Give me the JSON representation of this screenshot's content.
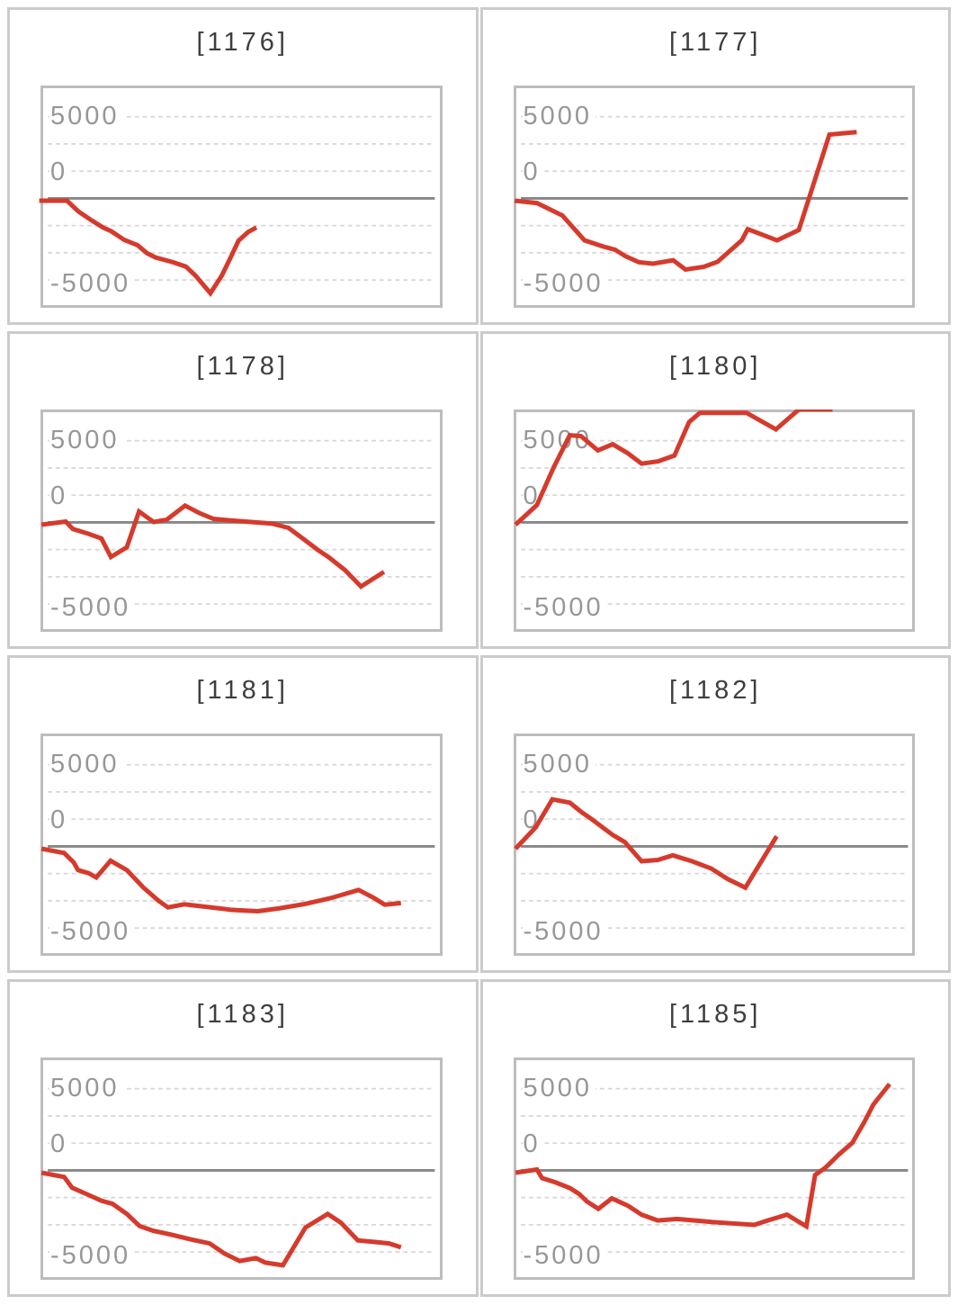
{
  "page": {
    "background": "#ffffff",
    "description": "Grid of 8 slump line charts"
  },
  "axis": {
    "ticks": [
      "5000",
      "0",
      "-5000"
    ],
    "tick_gridline_index": [
      0,
      2,
      6
    ],
    "gridline_count": 7,
    "zero_line_gridline_index": 3
  },
  "colors": {
    "series_red": "#d53a2c",
    "gridline": "#d9d9d9",
    "zero_line": "#868686",
    "plot_border": "#bdbdbd",
    "panel_border": "#cbcbcb",
    "tick_label": "#979797",
    "title": "#3e3e3e"
  },
  "chart_data": [
    {
      "type": "line",
      "title": "[1176]",
      "ylabel": "",
      "xlabel": "",
      "ylim": [
        -6700,
        6700
      ],
      "yticks": [
        5000,
        0,
        -5000
      ],
      "legend": "none",
      "grid": "dashed-horizontal",
      "x_unit": "fraction_of_plot_width",
      "x": [
        -0.01,
        0.06,
        0.089,
        0.122,
        0.151,
        0.171,
        0.204,
        0.238,
        0.262,
        0.284,
        0.327,
        0.36,
        0.384,
        0.422,
        0.451,
        0.473,
        0.493,
        0.518,
        0.538
      ],
      "y": [
        0,
        0,
        -640,
        -1170,
        -1600,
        -1810,
        -2340,
        -2660,
        -3140,
        -3400,
        -3670,
        -3940,
        -4470,
        -5530,
        -4470,
        -3400,
        -2390,
        -1860,
        -1600
      ]
    },
    {
      "type": "line",
      "title": "[1177]",
      "ylabel": "",
      "xlabel": "",
      "ylim": [
        -6700,
        6700
      ],
      "yticks": [
        5000,
        0,
        -5000
      ],
      "legend": "none",
      "grid": "dashed-horizontal",
      "x_unit": "fraction_of_plot_width",
      "x": [
        -0.004,
        0.052,
        0.116,
        0.172,
        0.221,
        0.249,
        0.276,
        0.309,
        0.345,
        0.396,
        0.427,
        0.473,
        0.508,
        0.569,
        0.584,
        0.658,
        0.713,
        0.79,
        0.859
      ],
      "y": [
        0,
        -140,
        -880,
        -2370,
        -2750,
        -2930,
        -3330,
        -3680,
        -3770,
        -3560,
        -4120,
        -3950,
        -3650,
        -2370,
        -1700,
        -2370,
        -1750,
        3950,
        4100
      ]
    },
    {
      "type": "line",
      "title": "[1178]",
      "ylabel": "",
      "xlabel": "",
      "ylim": [
        -6700,
        6700
      ],
      "yticks": [
        5000,
        0,
        -5000
      ],
      "legend": "none",
      "grid": "dashed-horizontal",
      "x_unit": "fraction_of_plot_width",
      "x": [
        -0.004,
        0.057,
        0.075,
        0.113,
        0.147,
        0.171,
        0.211,
        0.242,
        0.279,
        0.312,
        0.358,
        0.396,
        0.43,
        0.473,
        0.525,
        0.577,
        0.619,
        0.653,
        0.692,
        0.721,
        0.762,
        0.802,
        0.86
      ],
      "y": [
        0,
        190,
        -260,
        -530,
        -820,
        -1930,
        -1350,
        790,
        160,
        300,
        1140,
        680,
        350,
        260,
        160,
        70,
        -190,
        -790,
        -1490,
        -1950,
        -2720,
        -3700,
        -2820
      ]
    },
    {
      "type": "line",
      "title": "[1180]",
      "ylabel": "",
      "xlabel": "",
      "ylim": [
        -6700,
        6700
      ],
      "yticks": [
        5000,
        0,
        -5000
      ],
      "legend": "none",
      "grid": "dashed-horizontal",
      "x_unit": "fraction_of_plot_width",
      "note": "values above ~6600 are clipped at plot top",
      "x": [
        -0.002,
        0.052,
        0.094,
        0.135,
        0.163,
        0.206,
        0.243,
        0.281,
        0.316,
        0.358,
        0.399,
        0.436,
        0.463,
        0.581,
        0.655,
        0.713,
        0.798
      ],
      "y": [
        0,
        1180,
        3420,
        5350,
        5300,
        4440,
        4810,
        4280,
        3650,
        3790,
        4140,
        6140,
        6690,
        6690,
        5700,
        6890,
        6890
      ]
    },
    {
      "type": "line",
      "title": "[1181]",
      "ylabel": "",
      "xlabel": "",
      "ylim": [
        -6700,
        6700
      ],
      "yticks": [
        5000,
        0,
        -5000
      ],
      "legend": "none",
      "grid": "dashed-horizontal",
      "x_unit": "fraction_of_plot_width",
      "x": [
        -0.004,
        0.053,
        0.077,
        0.088,
        0.115,
        0.134,
        0.17,
        0.211,
        0.253,
        0.291,
        0.315,
        0.356,
        0.39,
        0.473,
        0.541,
        0.598,
        0.662,
        0.726,
        0.796,
        0.835,
        0.862,
        0.903
      ],
      "y": [
        0,
        -260,
        -820,
        -1280,
        -1460,
        -1720,
        -720,
        -1280,
        -2330,
        -3110,
        -3510,
        -3330,
        -3420,
        -3650,
        -3740,
        -3560,
        -3300,
        -2950,
        -2470,
        -2950,
        -3350,
        -3250
      ]
    },
    {
      "type": "line",
      "title": "[1182]",
      "ylabel": "",
      "xlabel": "",
      "ylim": [
        -6700,
        6700
      ],
      "yticks": [
        5000,
        0,
        -5000
      ],
      "legend": "none",
      "grid": "dashed-horizontal",
      "x_unit": "fraction_of_plot_width",
      "x": [
        -0.002,
        0.049,
        0.091,
        0.135,
        0.166,
        0.189,
        0.243,
        0.274,
        0.316,
        0.357,
        0.395,
        0.443,
        0.492,
        0.533,
        0.578,
        0.657
      ],
      "y": [
        0,
        1280,
        2950,
        2750,
        2160,
        1790,
        820,
        390,
        -750,
        -670,
        -400,
        -750,
        -1190,
        -1810,
        -2330,
        740
      ]
    },
    {
      "type": "line",
      "title": "[1183]",
      "ylabel": "",
      "xlabel": "",
      "ylim": [
        -6700,
        6700
      ],
      "yticks": [
        5000,
        0,
        -5000
      ],
      "legend": "none",
      "grid": "dashed-horizontal",
      "x_unit": "fraction_of_plot_width",
      "x": [
        -0.004,
        0.053,
        0.073,
        0.107,
        0.147,
        0.175,
        0.211,
        0.243,
        0.277,
        0.322,
        0.371,
        0.42,
        0.458,
        0.496,
        0.537,
        0.56,
        0.605,
        0.662,
        0.718,
        0.752,
        0.794,
        0.835,
        0.873,
        0.903
      ],
      "y": [
        0,
        -260,
        -900,
        -1250,
        -1680,
        -1860,
        -2470,
        -3190,
        -3470,
        -3700,
        -3980,
        -4230,
        -4840,
        -5280,
        -5110,
        -5370,
        -5540,
        -3280,
        -2470,
        -3000,
        -4050,
        -4140,
        -4230,
        -4460
      ]
    },
    {
      "type": "line",
      "title": "[1185]",
      "ylabel": "",
      "xlabel": "",
      "ylim": [
        -6700,
        6700
      ],
      "yticks": [
        5000,
        0,
        -5000
      ],
      "legend": "none",
      "grid": "dashed-horizontal",
      "x_unit": "fraction_of_plot_width",
      "x": [
        -0.002,
        0.052,
        0.065,
        0.099,
        0.136,
        0.159,
        0.178,
        0.207,
        0.241,
        0.282,
        0.316,
        0.357,
        0.406,
        0.451,
        0.496,
        0.548,
        0.601,
        0.634,
        0.683,
        0.732,
        0.754,
        0.78,
        0.814,
        0.848,
        0.878,
        0.901,
        0.942
      ],
      "y": [
        0,
        190,
        -320,
        -580,
        -930,
        -1280,
        -1720,
        -2160,
        -1540,
        -1980,
        -2510,
        -2860,
        -2770,
        -2860,
        -2950,
        -3040,
        -3120,
        -2860,
        -2510,
        -3210,
        -140,
        300,
        1090,
        1790,
        3020,
        4070,
        5300
      ]
    }
  ]
}
